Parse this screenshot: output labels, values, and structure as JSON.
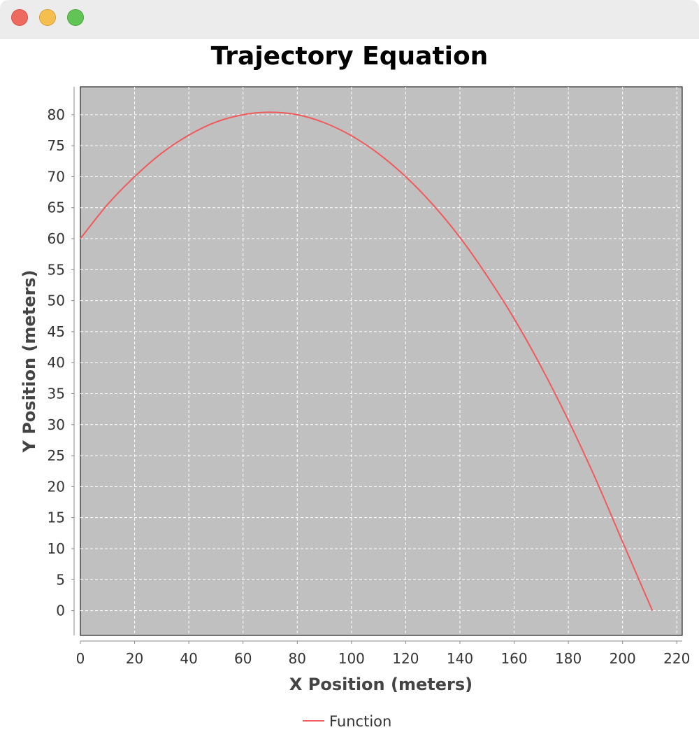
{
  "window": {
    "controls": [
      "close-button",
      "minimize-button",
      "zoom-button"
    ]
  },
  "colors": {
    "plot_background": "#c0c0c0",
    "gridline": "#ffffff",
    "series": "#f05a5a",
    "axis": "#888888"
  },
  "chart_data": {
    "type": "line",
    "title": "Trajectory Equation",
    "xlabel": "X Position (meters)",
    "ylabel": "Y Position (meters)",
    "xlim": [
      0,
      222
    ],
    "ylim": [
      -4,
      84.5
    ],
    "xticks": [
      0,
      20,
      40,
      60,
      80,
      100,
      120,
      140,
      160,
      180,
      200,
      220
    ],
    "yticks": [
      0,
      5,
      10,
      15,
      20,
      25,
      30,
      35,
      40,
      45,
      50,
      55,
      60,
      65,
      70,
      75,
      80
    ],
    "grid": true,
    "legend": "bottom-center",
    "series": [
      {
        "name": "Function",
        "x": [
          0,
          10,
          20,
          30,
          40,
          50,
          60,
          70,
          80,
          90,
          100,
          110,
          120,
          130,
          140,
          150,
          160,
          170,
          180,
          190,
          200,
          211
        ],
        "y": [
          60.0,
          65.5,
          70.0,
          73.8,
          76.7,
          78.8,
          80.0,
          80.4,
          80.0,
          78.7,
          76.6,
          73.7,
          70.0,
          65.5,
          60.2,
          54.0,
          47.1,
          39.3,
          30.7,
          21.3,
          11.1,
          0.0
        ]
      }
    ]
  }
}
